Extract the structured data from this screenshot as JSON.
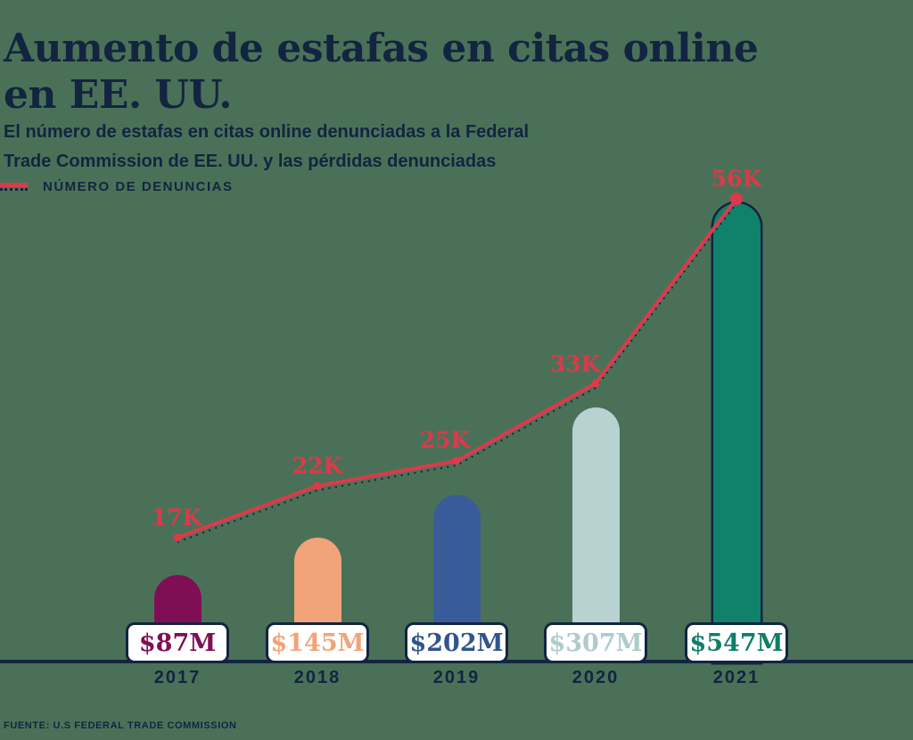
{
  "title": {
    "line1": "Aumento de estafas en citas online",
    "line2": "en EE. UU."
  },
  "subtitle": {
    "line1": "El número de estafas en citas online denunciadas a la Federal",
    "line2": "Trade Commission de EE. UU. y las pérdidas denunciadas"
  },
  "legend": {
    "label": "NÚMERO DE DENUNCIAS",
    "line_color": "#DB3A4B",
    "dot_color": "#132440"
  },
  "source": "FUENTE: U.S FEDERAL TRADE COMMISSION",
  "colors": {
    "background": "#4A7157",
    "ink": "#132440",
    "line": "#DB3A4B",
    "box_fill": "#FFFFFF"
  },
  "chart_data": {
    "type": "bar+line",
    "categories": [
      "2017",
      "2018",
      "2019",
      "2020",
      "2021"
    ],
    "series": [
      {
        "name": "NÚMERO DE DENUNCIAS",
        "type": "line",
        "values": [
          17000,
          22000,
          25000,
          33000,
          56000
        ],
        "point_labels": [
          "17K",
          "22K",
          "25K",
          "33K",
          "56K"
        ],
        "color": "#DB3A4B"
      },
      {
        "name": "Pérdidas denunciadas",
        "type": "bar",
        "values": [
          87,
          145,
          202,
          307,
          547
        ],
        "value_labels": [
          "$87M",
          "$145M",
          "$202M",
          "$307M",
          "$547M"
        ],
        "bar_colors": [
          "#800E55",
          "#F2A379",
          "#3A5B99",
          "#B8D1D1",
          "#10816B"
        ],
        "label_colors": [
          "#800E55",
          "#F2A379",
          "#31548F",
          "#AFCBCB",
          "#0F7E68"
        ]
      }
    ],
    "legend_position": "top-left",
    "grid": false
  }
}
